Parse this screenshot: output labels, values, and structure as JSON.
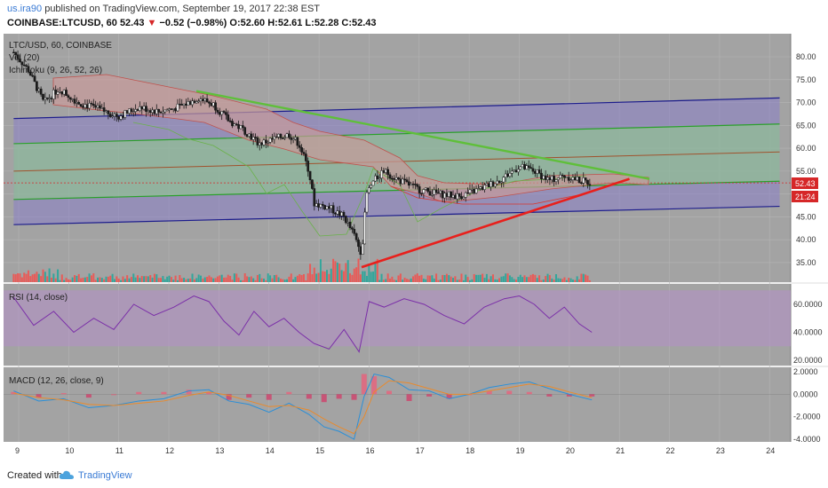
{
  "header": {
    "user": "us.ira90",
    "published": " published on TradingView.com, September 19, 2017 22:38 EST",
    "symbol_line": "COINBASE:LTCUSD, 60",
    "last": "52.43",
    "change": "−0.52 (−0.98%)",
    "o_label": "O:",
    "o_val": "52.60",
    "h_label": "H:",
    "h_val": "52.61",
    "l_label": "L:",
    "l_val": "52.28",
    "c_label": "C:",
    "c_val": "52.43"
  },
  "panes": {
    "main_title": "LTC/USD, 60, COINBASE",
    "vol_label": "Vol (20)",
    "ichimoku_label": "Ichimoku (9, 26, 52, 26)",
    "rsi_label": "RSI (14, close)",
    "macd_label": "MACD (12, 26, close, 9)"
  },
  "price_badge": "52.43",
  "timer_badge": "21:24",
  "footer": {
    "created": "Created with",
    "brand": "TradingView"
  },
  "colors": {
    "up": "#26a69a",
    "down": "#ef5350",
    "candle": "#1a1a1a",
    "bg": "#a3a3a3",
    "channel_blue": "#1c1c8c",
    "channel_green": "#2aa02a",
    "trend_green": "#5fbf3a",
    "trend_red": "#e8201c",
    "rsi": "#7b2fa8",
    "macd": "#2a8fd8",
    "signal": "#e98a2c"
  },
  "chart_data": [
    {
      "type": "candlestick",
      "title": "LTC/USD, 60, COINBASE",
      "x_ticks": [
        "9",
        "10",
        "11",
        "12",
        "13",
        "14",
        "15",
        "16",
        "17",
        "18",
        "19",
        "20",
        "21",
        "22",
        "23",
        "24"
      ],
      "y_ticks": [
        "35.00",
        "40.00",
        "45.00",
        "50.00",
        "55.00",
        "60.00",
        "65.00",
        "70.00",
        "75.00",
        "80.00"
      ],
      "ylim": [
        31,
        83
      ],
      "last_price": 52.43,
      "close_path": [
        {
          "x": 8.9,
          "y": 81
        },
        {
          "x": 9.2,
          "y": 77
        },
        {
          "x": 9.5,
          "y": 70
        },
        {
          "x": 9.8,
          "y": 73
        },
        {
          "x": 10.2,
          "y": 70
        },
        {
          "x": 10.6,
          "y": 68.5
        },
        {
          "x": 11.0,
          "y": 67
        },
        {
          "x": 11.4,
          "y": 69
        },
        {
          "x": 11.8,
          "y": 68
        },
        {
          "x": 12.2,
          "y": 69
        },
        {
          "x": 12.6,
          "y": 71
        },
        {
          "x": 12.9,
          "y": 69.5
        },
        {
          "x": 13.2,
          "y": 66
        },
        {
          "x": 13.5,
          "y": 64
        },
        {
          "x": 13.8,
          "y": 61
        },
        {
          "x": 14.1,
          "y": 62
        },
        {
          "x": 14.4,
          "y": 63
        },
        {
          "x": 14.6,
          "y": 61
        },
        {
          "x": 14.8,
          "y": 55
        },
        {
          "x": 14.9,
          "y": 48
        },
        {
          "x": 15.2,
          "y": 47
        },
        {
          "x": 15.5,
          "y": 45
        },
        {
          "x": 15.7,
          "y": 41
        },
        {
          "x": 15.85,
          "y": 37
        },
        {
          "x": 15.95,
          "y": 50
        },
        {
          "x": 16.1,
          "y": 53
        },
        {
          "x": 16.3,
          "y": 55
        },
        {
          "x": 16.6,
          "y": 53
        },
        {
          "x": 17.0,
          "y": 51
        },
        {
          "x": 17.4,
          "y": 50
        },
        {
          "x": 17.8,
          "y": 49.5
        },
        {
          "x": 18.2,
          "y": 51
        },
        {
          "x": 18.6,
          "y": 53
        },
        {
          "x": 19.0,
          "y": 56
        },
        {
          "x": 19.3,
          "y": 55
        },
        {
          "x": 19.6,
          "y": 53
        },
        {
          "x": 19.9,
          "y": 54
        },
        {
          "x": 20.2,
          "y": 53
        },
        {
          "x": 20.45,
          "y": 52.43
        }
      ],
      "channel_blue_upper": [
        {
          "x": 8.9,
          "y": 66.5
        },
        {
          "x": 24.2,
          "y": 71
        }
      ],
      "channel_blue_lower": [
        {
          "x": 8.9,
          "y": 43.3
        },
        {
          "x": 24.2,
          "y": 47.3
        }
      ],
      "channel_green_upper": [
        {
          "x": 8.9,
          "y": 61
        },
        {
          "x": 24.2,
          "y": 65.3
        }
      ],
      "channel_green_lower": [
        {
          "x": 8.9,
          "y": 48.8
        },
        {
          "x": 24.2,
          "y": 52.8
        }
      ],
      "channel_mid": [
        {
          "x": 8.9,
          "y": 55
        },
        {
          "x": 24.2,
          "y": 59.2
        }
      ],
      "trendline_green": [
        {
          "x": 12.55,
          "y": 72.5
        },
        {
          "x": 21.6,
          "y": 53.3
        }
      ],
      "trendline_red": [
        {
          "x": 15.85,
          "y": 34
        },
        {
          "x": 21.2,
          "y": 53.3
        }
      ]
    },
    {
      "type": "line",
      "title": "RSI (14, close)",
      "y_ticks": [
        "20.0000",
        "40.0000",
        "60.0000"
      ],
      "ylim": [
        15,
        75
      ],
      "band": [
        30,
        70
      ],
      "x": [
        8.9,
        9.3,
        9.7,
        10.1,
        10.5,
        10.9,
        11.3,
        11.7,
        12.1,
        12.5,
        12.8,
        13.1,
        13.4,
        13.7,
        14.0,
        14.3,
        14.6,
        14.9,
        15.2,
        15.5,
        15.8,
        16.0,
        16.3,
        16.7,
        17.1,
        17.5,
        17.9,
        18.3,
        18.7,
        19.0,
        19.3,
        19.6,
        19.9,
        20.2,
        20.45
      ],
      "values": [
        65,
        45,
        55,
        40,
        50,
        42,
        60,
        52,
        58,
        66,
        62,
        48,
        38,
        55,
        44,
        50,
        40,
        32,
        28,
        42,
        26,
        62,
        58,
        64,
        60,
        52,
        46,
        58,
        64,
        66,
        60,
        50,
        58,
        46,
        40
      ]
    },
    {
      "type": "line",
      "title": "MACD (12, 26, close, 9)",
      "y_ticks": [
        "-4.0000",
        "-2.0000",
        "0.0000",
        "2.0000"
      ],
      "ylim": [
        -4.5,
        2.5
      ],
      "x": [
        8.9,
        9.4,
        9.9,
        10.4,
        10.9,
        11.4,
        11.9,
        12.4,
        12.8,
        13.2,
        13.6,
        14.0,
        14.4,
        14.8,
        15.1,
        15.4,
        15.7,
        15.9,
        16.1,
        16.4,
        16.8,
        17.2,
        17.6,
        18.0,
        18.4,
        18.8,
        19.2,
        19.6,
        20.0,
        20.45
      ],
      "series": [
        {
          "name": "MACD",
          "values": [
            0.3,
            -0.6,
            -0.4,
            -1.2,
            -1.0,
            -0.6,
            -0.4,
            0.3,
            0.4,
            -0.6,
            -0.9,
            -1.6,
            -0.8,
            -1.8,
            -2.9,
            -3.3,
            -4.0,
            -0.2,
            1.8,
            1.5,
            0.4,
            0.3,
            -0.4,
            0.0,
            0.6,
            0.9,
            1.1,
            0.5,
            0.0,
            -0.5
          ]
        },
        {
          "name": "Signal",
          "values": [
            0.1,
            -0.3,
            -0.5,
            -0.9,
            -1.0,
            -0.8,
            -0.6,
            -0.1,
            0.2,
            -0.1,
            -0.6,
            -1.1,
            -1.0,
            -1.4,
            -2.2,
            -2.9,
            -3.5,
            -2.0,
            0.2,
            1.2,
            1.0,
            0.5,
            0.0,
            0.0,
            0.3,
            0.6,
            0.9,
            0.7,
            0.2,
            -0.3
          ]
        }
      ],
      "histogram": [
        0.2,
        -0.3,
        0.1,
        -0.3,
        0.0,
        0.2,
        0.2,
        0.4,
        0.2,
        -0.5,
        -0.3,
        -0.5,
        0.2,
        -0.4,
        -0.7,
        -0.4,
        -0.5,
        1.8,
        1.6,
        0.3,
        -0.6,
        -0.2,
        -0.4,
        0.0,
        0.3,
        0.3,
        0.2,
        -0.2,
        -0.2,
        -0.2
      ]
    }
  ]
}
